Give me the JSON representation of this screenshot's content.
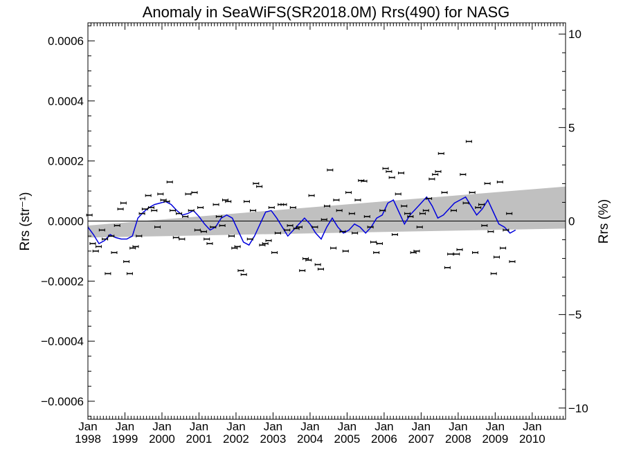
{
  "chart_data": {
    "type": "scatter",
    "title": "Anomaly in SeaWiFS(SR2018.0M) Rrs(490) for NASG",
    "ylabel_left": "Rrs (str⁻¹)",
    "ylabel_right": "Rrs (%)",
    "xlim": [
      1998.0,
      2010.9
    ],
    "ylim_left": [
      -0.00066,
      0.00066
    ],
    "ylim_right": [
      -10.6,
      10.6
    ],
    "left_ticks": [
      {
        "value": 0.0006,
        "label": "0.0006"
      },
      {
        "value": 0.0004,
        "label": "0.0004"
      },
      {
        "value": 0.0002,
        "label": "0.0002"
      },
      {
        "value": 0.0,
        "label": "0.0000"
      },
      {
        "value": -0.0002,
        "label": "−0.0002"
      },
      {
        "value": -0.0004,
        "label": "−0.0004"
      },
      {
        "value": -0.0006,
        "label": "−0.0006"
      }
    ],
    "right_ticks": [
      {
        "value": 10,
        "label": "10"
      },
      {
        "value": 5,
        "label": "5"
      },
      {
        "value": 0,
        "label": "0"
      },
      {
        "value": -5,
        "label": "−5"
      },
      {
        "value": -10,
        "label": "−10"
      }
    ],
    "x_ticks": [
      {
        "value": 1998,
        "month": "Jan",
        "year": "1998"
      },
      {
        "value": 1999,
        "month": "Jan",
        "year": "1999"
      },
      {
        "value": 2000,
        "month": "Jan",
        "year": "2000"
      },
      {
        "value": 2001,
        "month": "Jan",
        "year": "2001"
      },
      {
        "value": 2002,
        "month": "Jan",
        "year": "2002"
      },
      {
        "value": 2003,
        "month": "Jan",
        "year": "2003"
      },
      {
        "value": 2004,
        "month": "Jan",
        "year": "2004"
      },
      {
        "value": 2005,
        "month": "Jan",
        "year": "2005"
      },
      {
        "value": 2006,
        "month": "Jan",
        "year": "2006"
      },
      {
        "value": 2007,
        "month": "Jan",
        "year": "2007"
      },
      {
        "value": 2008,
        "month": "Jan",
        "year": "2008"
      },
      {
        "value": 2009,
        "month": "Jan",
        "year": "2009"
      },
      {
        "value": 2010,
        "month": "Jan",
        "year": "2010"
      }
    ],
    "band": [
      {
        "x": 1998.0,
        "lo": -5.5e-05,
        "hi": -1.5e-05
      },
      {
        "x": 2010.9,
        "lo": -2.5e-05,
        "hi": 0.000115
      }
    ],
    "points": [
      {
        "x": 1998.04,
        "y": 2e-05
      },
      {
        "x": 1998.13,
        "y": -7.5e-05
      },
      {
        "x": 1998.21,
        "y": -0.0001
      },
      {
        "x": 1998.29,
        "y": -8.5e-05
      },
      {
        "x": 1998.38,
        "y": -3e-05
      },
      {
        "x": 1998.46,
        "y": -6e-05
      },
      {
        "x": 1998.54,
        "y": -0.000175
      },
      {
        "x": 1998.63,
        "y": -5e-05
      },
      {
        "x": 1998.71,
        "y": -0.000105
      },
      {
        "x": 1998.79,
        "y": -1.5e-05
      },
      {
        "x": 1998.88,
        "y": 4e-05
      },
      {
        "x": 1998.96,
        "y": 6e-05
      },
      {
        "x": 1999.04,
        "y": -0.000135
      },
      {
        "x": 1999.13,
        "y": -0.000175
      },
      {
        "x": 1999.21,
        "y": -9e-05
      },
      {
        "x": 1999.29,
        "y": -8.5e-05
      },
      {
        "x": 1999.38,
        "y": -5e-05
      },
      {
        "x": 1999.46,
        "y": 2.5e-05
      },
      {
        "x": 1999.54,
        "y": 4e-05
      },
      {
        "x": 1999.63,
        "y": 8.5e-05
      },
      {
        "x": 1999.71,
        "y": 4.5e-05
      },
      {
        "x": 1999.79,
        "y": 3.5e-05
      },
      {
        "x": 1999.88,
        "y": -2e-05
      },
      {
        "x": 1999.96,
        "y": 9e-05
      },
      {
        "x": 2000.04,
        "y": 7e-05
      },
      {
        "x": 2000.13,
        "y": 6.5e-05
      },
      {
        "x": 2000.21,
        "y": 0.00013
      },
      {
        "x": 2000.29,
        "y": 3.5e-05
      },
      {
        "x": 2000.38,
        "y": -5.5e-05
      },
      {
        "x": 2000.46,
        "y": 2.5e-05
      },
      {
        "x": 2000.54,
        "y": -6e-05
      },
      {
        "x": 2000.63,
        "y": 1.5e-05
      },
      {
        "x": 2000.71,
        "y": 9e-05
      },
      {
        "x": 2000.79,
        "y": 3.5e-05
      },
      {
        "x": 2000.88,
        "y": 9.5e-05
      },
      {
        "x": 2000.96,
        "y": -3e-05
      },
      {
        "x": 2001.04,
        "y": 4.5e-05
      },
      {
        "x": 2001.13,
        "y": -3.5e-05
      },
      {
        "x": 2001.21,
        "y": -6e-05
      },
      {
        "x": 2001.29,
        "y": -7.5e-05
      },
      {
        "x": 2001.38,
        "y": -2e-05
      },
      {
        "x": 2001.46,
        "y": 5.5e-05
      },
      {
        "x": 2001.54,
        "y": 1.5e-05
      },
      {
        "x": 2001.63,
        "y": -1.5e-05
      },
      {
        "x": 2001.71,
        "y": 7e-05
      },
      {
        "x": 2001.79,
        "y": 6.5e-05
      },
      {
        "x": 2001.88,
        "y": -5e-05
      },
      {
        "x": 2001.96,
        "y": -9e-05
      },
      {
        "x": 2002.04,
        "y": -8.5e-05
      },
      {
        "x": 2002.13,
        "y": -0.000165
      },
      {
        "x": 2002.21,
        "y": -0.000178
      },
      {
        "x": 2002.29,
        "y": 6.5e-05
      },
      {
        "x": 2002.38,
        "y": -6e-05
      },
      {
        "x": 2002.46,
        "y": 3.5e-05
      },
      {
        "x": 2002.54,
        "y": 0.000125
      },
      {
        "x": 2002.63,
        "y": 0.000115
      },
      {
        "x": 2002.71,
        "y": -8e-05
      },
      {
        "x": 2002.79,
        "y": -7.5e-05
      },
      {
        "x": 2002.88,
        "y": -6.5e-05
      },
      {
        "x": 2002.96,
        "y": 4.5e-05
      },
      {
        "x": 2003.04,
        "y": -0.000105
      },
      {
        "x": 2003.13,
        "y": -4e-05
      },
      {
        "x": 2003.21,
        "y": 5.5e-05
      },
      {
        "x": 2003.29,
        "y": 5.5e-05
      },
      {
        "x": 2003.38,
        "y": -3e-05
      },
      {
        "x": 2003.46,
        "y": -1.5e-05
      },
      {
        "x": 2003.54,
        "y": 4.5e-05
      },
      {
        "x": 2003.63,
        "y": -2.5e-05
      },
      {
        "x": 2003.71,
        "y": -2e-05
      },
      {
        "x": 2003.79,
        "y": -0.000165
      },
      {
        "x": 2003.88,
        "y": -0.000125
      },
      {
        "x": 2003.96,
        "y": -0.00013
      },
      {
        "x": 2004.04,
        "y": 8.5e-05
      },
      {
        "x": 2004.13,
        "y": -2e-05
      },
      {
        "x": 2004.21,
        "y": -0.000145
      },
      {
        "x": 2004.29,
        "y": -0.00016
      },
      {
        "x": 2004.38,
        "y": 5e-06
      },
      {
        "x": 2004.46,
        "y": 5e-05
      },
      {
        "x": 2004.54,
        "y": 0.00017
      },
      {
        "x": 2004.63,
        "y": -9e-05
      },
      {
        "x": 2004.71,
        "y": 7e-05
      },
      {
        "x": 2004.79,
        "y": 3.5e-05
      },
      {
        "x": 2004.88,
        "y": -3.5e-05
      },
      {
        "x": 2004.96,
        "y": -0.0001
      },
      {
        "x": 2005.04,
        "y": 9.5e-05
      },
      {
        "x": 2005.13,
        "y": 2.5e-05
      },
      {
        "x": 2005.21,
        "y": -4e-05
      },
      {
        "x": 2005.29,
        "y": 7e-05
      },
      {
        "x": 2005.38,
        "y": 0.000135
      },
      {
        "x": 2005.46,
        "y": 0.000133
      },
      {
        "x": 2005.54,
        "y": 1.5e-05
      },
      {
        "x": 2005.63,
        "y": -2e-05
      },
      {
        "x": 2005.71,
        "y": -7e-05
      },
      {
        "x": 2005.79,
        "y": -0.000105
      },
      {
        "x": 2005.88,
        "y": -7.5e-05
      },
      {
        "x": 2005.96,
        "y": 3.5e-05
      },
      {
        "x": 2006.04,
        "y": 0.000175
      },
      {
        "x": 2006.13,
        "y": 0.000165
      },
      {
        "x": 2006.21,
        "y": 0.000145
      },
      {
        "x": 2006.29,
        "y": -4.5e-05
      },
      {
        "x": 2006.38,
        "y": 9e-05
      },
      {
        "x": 2006.46,
        "y": 0.00016
      },
      {
        "x": 2006.54,
        "y": 5e-05
      },
      {
        "x": 2006.63,
        "y": 2.5e-05
      },
      {
        "x": 2006.71,
        "y": 1.5e-05
      },
      {
        "x": 2006.79,
        "y": -0.000105
      },
      {
        "x": 2006.88,
        "y": -0.0001
      },
      {
        "x": 2006.96,
        "y": -2e-05
      },
      {
        "x": 2007.04,
        "y": 2.5e-05
      },
      {
        "x": 2007.13,
        "y": 3.5e-05
      },
      {
        "x": 2007.21,
        "y": 7.5e-05
      },
      {
        "x": 2007.29,
        "y": 0.00014
      },
      {
        "x": 2007.38,
        "y": 0.000155
      },
      {
        "x": 2007.46,
        "y": 0.000165
      },
      {
        "x": 2007.54,
        "y": 0.000225
      },
      {
        "x": 2007.63,
        "y": 9.5e-05
      },
      {
        "x": 2007.71,
        "y": -0.000155
      },
      {
        "x": 2007.79,
        "y": -0.00011
      },
      {
        "x": 2007.88,
        "y": 3.5e-05
      },
      {
        "x": 2007.96,
        "y": -0.00011
      },
      {
        "x": 2008.04,
        "y": -9.5e-05
      },
      {
        "x": 2008.13,
        "y": 0.000155
      },
      {
        "x": 2008.21,
        "y": 6e-05
      },
      {
        "x": 2008.29,
        "y": 0.000265
      },
      {
        "x": 2008.38,
        "y": 9.5e-05
      },
      {
        "x": 2008.46,
        "y": -0.000105
      },
      {
        "x": 2008.54,
        "y": 4.5e-05
      },
      {
        "x": 2008.63,
        "y": 5.5e-05
      },
      {
        "x": 2008.71,
        "y": -1.5e-05
      },
      {
        "x": 2008.79,
        "y": 0.000125
      },
      {
        "x": 2008.88,
        "y": -3.5e-05
      },
      {
        "x": 2008.96,
        "y": -0.000175
      },
      {
        "x": 2009.04,
        "y": -0.00012
      },
      {
        "x": 2009.13,
        "y": 0.00013
      },
      {
        "x": 2009.21,
        "y": -9e-05
      },
      {
        "x": 2009.29,
        "y": -3e-05
      },
      {
        "x": 2009.38,
        "y": 2.5e-05
      },
      {
        "x": 2009.46,
        "y": -0.000135
      }
    ],
    "series_line": {
      "name": "",
      "color": "#0000dd",
      "points": [
        {
          "x": 1998.0,
          "y": -2e-05
        },
        {
          "x": 1998.15,
          "y": -4.5e-05
        },
        {
          "x": 1998.3,
          "y": -7.5e-05
        },
        {
          "x": 1998.45,
          "y": -6.5e-05
        },
        {
          "x": 1998.6,
          "y": -4.5e-05
        },
        {
          "x": 1998.75,
          "y": -5.5e-05
        },
        {
          "x": 1998.9,
          "y": -6e-05
        },
        {
          "x": 1999.05,
          "y": -6e-05
        },
        {
          "x": 1999.2,
          "y": -5e-05
        },
        {
          "x": 1999.35,
          "y": 1e-05
        },
        {
          "x": 1999.5,
          "y": 3e-05
        },
        {
          "x": 1999.65,
          "y": 4.5e-05
        },
        {
          "x": 1999.8,
          "y": 5.5e-05
        },
        {
          "x": 1999.95,
          "y": 6e-05
        },
        {
          "x": 2000.1,
          "y": 6.5e-05
        },
        {
          "x": 2000.25,
          "y": 5.5e-05
        },
        {
          "x": 2000.4,
          "y": 3.5e-05
        },
        {
          "x": 2000.55,
          "y": 2e-05
        },
        {
          "x": 2000.7,
          "y": 2.5e-05
        },
        {
          "x": 2000.85,
          "y": 3.5e-05
        },
        {
          "x": 2001.0,
          "y": 1.5e-05
        },
        {
          "x": 2001.15,
          "y": -1e-05
        },
        {
          "x": 2001.3,
          "y": -3e-05
        },
        {
          "x": 2001.45,
          "y": -2e-05
        },
        {
          "x": 2001.6,
          "y": 1e-05
        },
        {
          "x": 2001.75,
          "y": 2e-05
        },
        {
          "x": 2001.9,
          "y": 1e-05
        },
        {
          "x": 2002.05,
          "y": -3e-05
        },
        {
          "x": 2002.2,
          "y": -7e-05
        },
        {
          "x": 2002.35,
          "y": -8e-05
        },
        {
          "x": 2002.5,
          "y": -5e-05
        },
        {
          "x": 2002.65,
          "y": -1e-05
        },
        {
          "x": 2002.8,
          "y": 3e-05
        },
        {
          "x": 2002.95,
          "y": 3.5e-05
        },
        {
          "x": 2003.1,
          "y": 1e-05
        },
        {
          "x": 2003.25,
          "y": -2e-05
        },
        {
          "x": 2003.4,
          "y": -5e-05
        },
        {
          "x": 2003.55,
          "y": -3e-05
        },
        {
          "x": 2003.7,
          "y": -1e-05
        },
        {
          "x": 2003.85,
          "y": 1e-05
        },
        {
          "x": 2004.0,
          "y": -1e-05
        },
        {
          "x": 2004.15,
          "y": -4e-05
        },
        {
          "x": 2004.3,
          "y": -6e-05
        },
        {
          "x": 2004.45,
          "y": -2e-05
        },
        {
          "x": 2004.6,
          "y": 1e-05
        },
        {
          "x": 2004.75,
          "y": -2e-05
        },
        {
          "x": 2004.9,
          "y": -4e-05
        },
        {
          "x": 2005.05,
          "y": -3e-05
        },
        {
          "x": 2005.2,
          "y": -1e-05
        },
        {
          "x": 2005.35,
          "y": -2e-05
        },
        {
          "x": 2005.5,
          "y": -4e-05
        },
        {
          "x": 2005.65,
          "y": -2e-05
        },
        {
          "x": 2005.8,
          "y": 1e-05
        },
        {
          "x": 2005.95,
          "y": 2e-05
        },
        {
          "x": 2006.1,
          "y": 6e-05
        },
        {
          "x": 2006.25,
          "y": 7e-05
        },
        {
          "x": 2006.4,
          "y": 3e-05
        },
        {
          "x": 2006.55,
          "y": -1e-05
        },
        {
          "x": 2006.7,
          "y": 2e-05
        },
        {
          "x": 2006.85,
          "y": 4e-05
        },
        {
          "x": 2007.0,
          "y": 6e-05
        },
        {
          "x": 2007.15,
          "y": 8e-05
        },
        {
          "x": 2007.3,
          "y": 5e-05
        },
        {
          "x": 2007.45,
          "y": 1e-05
        },
        {
          "x": 2007.6,
          "y": 2e-05
        },
        {
          "x": 2007.75,
          "y": 4e-05
        },
        {
          "x": 2007.9,
          "y": 6e-05
        },
        {
          "x": 2008.05,
          "y": 7e-05
        },
        {
          "x": 2008.2,
          "y": 8e-05
        },
        {
          "x": 2008.35,
          "y": 5e-05
        },
        {
          "x": 2008.5,
          "y": 2e-05
        },
        {
          "x": 2008.65,
          "y": 4e-05
        },
        {
          "x": 2008.8,
          "y": 7e-05
        },
        {
          "x": 2008.95,
          "y": 3e-05
        },
        {
          "x": 2009.1,
          "y": -1e-05
        },
        {
          "x": 2009.25,
          "y": -2e-05
        },
        {
          "x": 2009.4,
          "y": -4e-05
        },
        {
          "x": 2009.55,
          "y": -3e-05
        }
      ]
    }
  }
}
